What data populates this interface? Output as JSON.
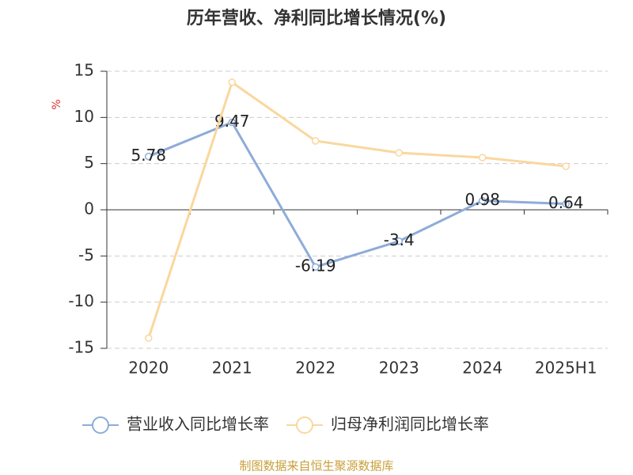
{
  "chart_data": {
    "type": "line",
    "title": "历年营收、净利同比增长情况(%)",
    "y_label": "%",
    "categories": [
      "2020",
      "2021",
      "2022",
      "2023",
      "2024",
      "2025H1"
    ],
    "series": [
      {
        "name": "营业收入同比增长率",
        "color": "#8eacd9",
        "values": [
          5.78,
          9.47,
          -6.19,
          -3.4,
          0.98,
          0.64
        ],
        "data_labels": true
      },
      {
        "name": "归母净利润同比增长率",
        "color": "#fad79e",
        "values": [
          -13.9,
          13.8,
          7.46,
          6.17,
          5.66,
          4.71
        ],
        "data_labels": false
      }
    ],
    "ylim": [
      -15,
      15
    ],
    "yticks": [
      -15,
      -10,
      -5,
      0,
      5,
      10,
      15
    ],
    "grid": true,
    "legend": "bottom",
    "source": "制图数据来自恒生聚源数据库"
  }
}
